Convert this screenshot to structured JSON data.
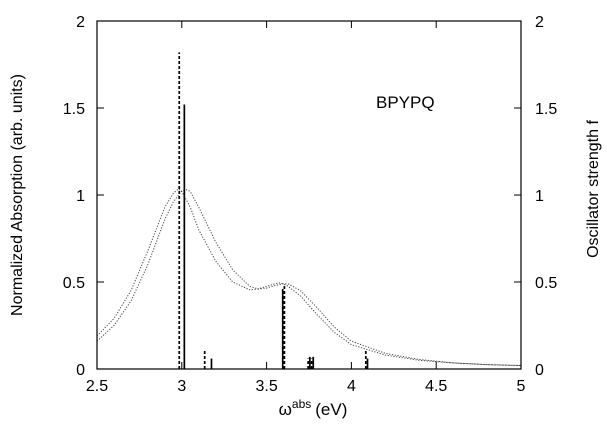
{
  "chart_data": {
    "type": "line",
    "title": "",
    "annotation": "BPYPQ",
    "xlabel": {
      "main": "ω",
      "sup": "abs",
      "unit": "(eV)"
    },
    "ylabel_left": "Normalized Absorption (arb. units)",
    "ylabel_right": "Oscillator strength f",
    "xlim": [
      2.5,
      5
    ],
    "ylim": [
      0,
      2
    ],
    "xticks": [
      "2.5",
      "3",
      "3.5",
      "4",
      "4.5",
      "5"
    ],
    "yticks": [
      "0",
      "0.5",
      "1",
      "1.5",
      "2"
    ],
    "yticks_right": [
      "0",
      "0.5",
      "1",
      "1.5",
      "2"
    ],
    "grid": false,
    "series": [
      {
        "style": "dotted",
        "x": [
          2.5,
          2.6,
          2.7,
          2.8,
          2.9,
          2.95,
          2.98,
          3.0,
          3.05,
          3.1,
          3.2,
          3.3,
          3.4,
          3.45,
          3.5,
          3.55,
          3.58,
          3.62,
          3.7,
          3.8,
          3.9,
          4.0,
          4.2,
          4.4,
          4.6,
          4.8,
          5.0
        ],
        "values": [
          0.19,
          0.29,
          0.45,
          0.68,
          0.93,
          1.01,
          1.035,
          1.02,
          0.93,
          0.8,
          0.62,
          0.5,
          0.455,
          0.46,
          0.475,
          0.49,
          0.495,
          0.48,
          0.42,
          0.31,
          0.21,
          0.14,
          0.08,
          0.05,
          0.035,
          0.025,
          0.02
        ]
      },
      {
        "style": "dotted",
        "x": [
          2.5,
          2.6,
          2.7,
          2.8,
          2.9,
          2.95,
          3.0,
          3.03,
          3.05,
          3.1,
          3.2,
          3.3,
          3.4,
          3.45,
          3.5,
          3.55,
          3.6,
          3.63,
          3.7,
          3.8,
          3.9,
          4.0,
          4.2,
          4.4,
          4.6,
          4.8,
          5.0
        ],
        "values": [
          0.16,
          0.25,
          0.39,
          0.6,
          0.86,
          0.96,
          1.025,
          1.03,
          1.02,
          0.93,
          0.73,
          0.57,
          0.475,
          0.46,
          0.465,
          0.48,
          0.49,
          0.488,
          0.45,
          0.35,
          0.24,
          0.16,
          0.09,
          0.055,
          0.035,
          0.025,
          0.02
        ]
      }
    ],
    "sticks": [
      {
        "style": "dashed",
        "x": 2.985,
        "value": 1.82
      },
      {
        "style": "solid",
        "x": 3.015,
        "value": 1.52
      },
      {
        "style": "dashed",
        "x": 3.135,
        "value": 0.11
      },
      {
        "style": "solid",
        "x": 3.175,
        "value": 0.06
      },
      {
        "style": "solid",
        "x": 3.595,
        "value": 0.46
      },
      {
        "style": "dashed",
        "x": 3.605,
        "value": 0.48
      },
      {
        "style": "dashed",
        "x": 3.745,
        "value": 0.06
      },
      {
        "style": "solid",
        "x": 3.755,
        "value": 0.07
      },
      {
        "style": "dashed",
        "x": 3.765,
        "value": 0.06
      },
      {
        "style": "solid",
        "x": 3.775,
        "value": 0.07
      },
      {
        "style": "dashed",
        "x": 4.085,
        "value": 0.11
      },
      {
        "style": "solid",
        "x": 4.095,
        "value": 0.06
      }
    ]
  }
}
